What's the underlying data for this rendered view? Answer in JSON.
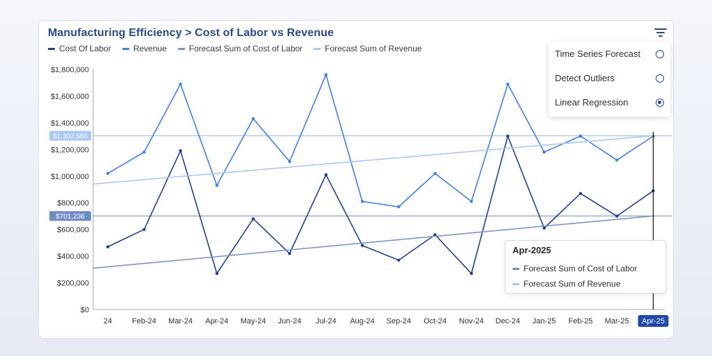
{
  "header": {
    "title": "Manufacturing Efficiency > Cost of Labor vs Revenue"
  },
  "legend": {
    "items": [
      {
        "label": "Cost Of Labor",
        "color": "#1f3f91"
      },
      {
        "label": "Revenue",
        "color": "#3f7ee8"
      },
      {
        "label": "Forecast Sum of Cost of Labor",
        "color": "#7b94c6"
      },
      {
        "label": "Forecast Sum of Revenue",
        "color": "#a9c7f2"
      }
    ]
  },
  "menu": {
    "items": [
      {
        "label": "Time Series Forecast",
        "selected": false
      },
      {
        "label": "Detect Outliers",
        "selected": false
      },
      {
        "label": "Linear Regression",
        "selected": true
      }
    ]
  },
  "tooltip": {
    "title": "Apr-2025",
    "rows": [
      {
        "label": "Forecast Sum of Cost of Labor",
        "color": "#6f8bc7"
      },
      {
        "label": "Forecast Sum of Revenue",
        "color": "#a9c7f2"
      }
    ]
  },
  "chart_data": {
    "type": "line",
    "title": "Manufacturing Efficiency > Cost of Labor vs Revenue",
    "x": [
      "24",
      "Feb-24",
      "Mar-24",
      "Apr-24",
      "May-24",
      "Jun-24",
      "Jul-24",
      "Aug-24",
      "Sep-24",
      "Oct-24",
      "Nov-24",
      "Dec-24",
      "Jan-25",
      "Feb-25",
      "Mar-25",
      "Apr-25"
    ],
    "highlighted_x": "Apr-25",
    "ylim": [
      0,
      1800000
    ],
    "ytick_labels": [
      "$0",
      "$200,000",
      "$400,000",
      "$600,000",
      "$800,000",
      "$1,000,000",
      "$1,200,000",
      "$1,400,000",
      "$1,600,000",
      "$1,800,000"
    ],
    "ytick_values": [
      0,
      200000,
      400000,
      600000,
      800000,
      1000000,
      1200000,
      1400000,
      1600000,
      1800000
    ],
    "series": [
      {
        "name": "Cost Of Labor",
        "color": "#1f3f91",
        "markers": true,
        "points": [
          [
            "24",
            470000
          ],
          [
            "Feb-24",
            600000
          ],
          [
            "Mar-24",
            1190000
          ],
          [
            "Apr-24",
            270000
          ],
          [
            "May-24",
            680000
          ],
          [
            "Jun-24",
            420000
          ],
          [
            "Jul-24",
            1010000
          ],
          [
            "Aug-24",
            480000
          ],
          [
            "Sep-24",
            370000
          ],
          [
            "Oct-24",
            560000
          ],
          [
            "Nov-24",
            270000
          ],
          [
            "Dec-24",
            1300000
          ],
          [
            "Jan-25",
            610000
          ],
          [
            "Feb-25",
            870000
          ],
          [
            "Mar-25",
            700000
          ],
          [
            "Apr-25",
            890000
          ]
        ]
      },
      {
        "name": "Revenue",
        "color": "#3f7ee8",
        "markers": true,
        "points": [
          [
            "24",
            1020000
          ],
          [
            "Feb-24",
            1180000
          ],
          [
            "Mar-24",
            1690000
          ],
          [
            "Apr-24",
            930000
          ],
          [
            "May-24",
            1430000
          ],
          [
            "Jun-24",
            1110000
          ],
          [
            "Jul-24",
            1760000
          ],
          [
            "Aug-24",
            810000
          ],
          [
            "Sep-24",
            770000
          ],
          [
            "Oct-24",
            1020000
          ],
          [
            "Nov-24",
            810000
          ],
          [
            "Dec-24",
            1690000
          ],
          [
            "Jan-25",
            1180000
          ],
          [
            "Feb-25",
            1300000
          ],
          [
            "Mar-25",
            1120000
          ],
          [
            "Apr-25",
            1300000
          ]
        ]
      },
      {
        "name": "Forecast Sum of Cost of Labor",
        "color": "#7b94c6",
        "markers": false,
        "points": [
          [
            "24",
            320000
          ],
          [
            "Apr-25",
            701236
          ]
        ]
      },
      {
        "name": "Forecast Sum of Revenue",
        "color": "#a9c7f2",
        "markers": false,
        "points": [
          [
            "24",
            950000
          ],
          [
            "Apr-25",
            1302586
          ]
        ]
      }
    ],
    "reference_lines": [
      {
        "value": 1302586,
        "label": "$1,302,586",
        "color": "#a9c7f2",
        "label_bg": "#a9c7f2"
      },
      {
        "value": 701236,
        "label": "$701,236",
        "color": "#7b94c6",
        "label_bg": "#6f8bc7"
      }
    ],
    "grid": false,
    "legend_position": "top-left"
  }
}
